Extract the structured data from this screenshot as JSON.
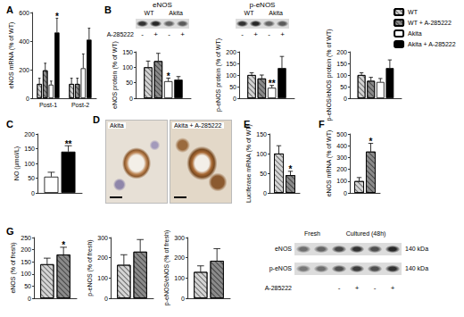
{
  "chart_data": [
    {
      "type": "bar",
      "title": "A",
      "ylabel": "eNOS mRNA (% of WT)",
      "categories": [
        "Post-1",
        "Post-2"
      ],
      "series": [
        {
          "name": "WT",
          "color": "#d4d4d4",
          "values": [
            100,
            100
          ],
          "errors": [
            40,
            40
          ]
        },
        {
          "name": "WT + A-285222",
          "color": "#8a8a8a",
          "values": [
            195,
            100
          ],
          "errors": [
            50,
            40
          ]
        },
        {
          "name": "Akita",
          "color": "#ffffff",
          "values": [
            95,
            210
          ],
          "errors": [
            25,
            100
          ]
        },
        {
          "name": "Akita + A-285222",
          "color": "#000000",
          "values": [
            460,
            410
          ],
          "errors": [
            100,
            80
          ],
          "annotations": [
            "*",
            null
          ]
        }
      ],
      "ylim": [
        0,
        600
      ],
      "yticks": [
        0,
        200,
        400,
        600
      ],
      "grid": false,
      "legend": "upper right"
    },
    {
      "type": "bar",
      "title": "B",
      "ylabel": "eNOS protein (% of WT)",
      "categories": [
        null
      ],
      "series": [
        {
          "name": "WT",
          "color": "#d4d4d4",
          "values": [
            100
          ],
          "errors": [
            20
          ]
        },
        {
          "name": "WT + A-285222",
          "color": "#8a8a8a",
          "values": [
            120
          ],
          "errors": [
            25
          ]
        },
        {
          "name": "Akita",
          "color": "#ffffff",
          "values": [
            55
          ],
          "errors": [
            10
          ],
          "annotations": [
            "*"
          ]
        },
        {
          "name": "Akita + A-285222",
          "color": "#000000",
          "values": [
            60
          ],
          "errors": [
            10
          ]
        }
      ],
      "ylim": [
        0,
        150
      ],
      "yticks": [
        0,
        50,
        100,
        150
      ],
      "grid": false
    },
    {
      "type": "bar",
      "ylabel": "p-eNOS protein (% of WT)",
      "categories": [
        null
      ],
      "series": [
        {
          "name": "WT",
          "color": "#d4d4d4",
          "values": [
            100
          ],
          "errors": [
            10
          ]
        },
        {
          "name": "WT + A-285222",
          "color": "#8a8a8a",
          "values": [
            85
          ],
          "errors": [
            15
          ]
        },
        {
          "name": "Akita",
          "color": "#ffffff",
          "values": [
            45
          ],
          "errors": [
            10
          ],
          "annotations": [
            "**"
          ]
        },
        {
          "name": "Akita + A-285222",
          "color": "#000000",
          "values": [
            130
          ],
          "errors": [
            50
          ]
        }
      ],
      "ylim": [
        0,
        200
      ],
      "yticks": [
        0,
        50,
        100,
        150,
        200
      ],
      "grid": false
    },
    {
      "type": "bar",
      "ylabel": "p-eNOS/eNOS protein (% of WT)",
      "categories": [
        null
      ],
      "series": [
        {
          "name": "WT",
          "color": "#d4d4d4",
          "values": [
            100
          ],
          "errors": [
            10
          ]
        },
        {
          "name": "WT + A-285222",
          "color": "#8a8a8a",
          "values": [
            75
          ],
          "errors": [
            15
          ]
        },
        {
          "name": "Akita",
          "color": "#ffffff",
          "values": [
            70
          ],
          "errors": [
            15
          ]
        },
        {
          "name": "Akita + A-285222",
          "color": "#000000",
          "values": [
            130
          ],
          "errors": [
            35
          ]
        }
      ],
      "ylim": [
        0,
        200
      ],
      "yticks": [
        0,
        50,
        100,
        150,
        200
      ],
      "grid": false
    },
    {
      "type": "bar",
      "title": "C",
      "ylabel": "NO (μmol/L)",
      "categories": [
        null
      ],
      "series": [
        {
          "name": "Akita",
          "color": "#ffffff",
          "values": [
            55
          ],
          "errors": [
            15
          ]
        },
        {
          "name": "Akita + A-285222",
          "color": "#000000",
          "values": [
            140
          ],
          "errors": [
            20
          ],
          "annotations": [
            "**"
          ]
        }
      ],
      "ylim": [
        0,
        200
      ],
      "yticks": [
        0,
        50,
        100,
        150,
        200
      ],
      "grid": false
    },
    {
      "type": "bar",
      "title": "E",
      "ylabel": "Luciferase mRNA (% of WT)",
      "categories": [
        null
      ],
      "series": [
        {
          "color": "#d4d4d4",
          "values": [
            100
          ],
          "errors": [
            20
          ]
        },
        {
          "color": "#8a8a8a",
          "values": [
            45
          ],
          "errors": [
            10
          ],
          "annotations": [
            "*"
          ]
        }
      ],
      "ylim": [
        0,
        150
      ],
      "yticks": [
        0,
        50,
        100,
        150
      ],
      "grid": false
    },
    {
      "type": "bar",
      "title": "F",
      "ylabel": "eNOS mRNA (% of WT)",
      "categories": [
        null
      ],
      "series": [
        {
          "color": "#d4d4d4",
          "values": [
            100
          ],
          "errors": [
            30
          ]
        },
        {
          "color": "#8a8a8a",
          "values": [
            350
          ],
          "errors": [
            70
          ],
          "annotations": [
            "*"
          ]
        }
      ],
      "ylim": [
        0,
        500
      ],
      "yticks": [
        0,
        100,
        200,
        300,
        400,
        500
      ],
      "grid": false
    },
    {
      "type": "bar",
      "title": "G",
      "ylabel": "eNOS (% of fresh)",
      "categories": [
        null
      ],
      "series": [
        {
          "color": "#d4d4d4",
          "values": [
            140
          ],
          "errors": [
            25
          ]
        },
        {
          "color": "#8a8a8a",
          "values": [
            180
          ],
          "errors": [
            30
          ],
          "annotations": [
            "*"
          ]
        }
      ],
      "ylim": [
        0,
        250
      ],
      "yticks": [
        0,
        50,
        100,
        150,
        200,
        250
      ],
      "grid": false
    },
    {
      "type": "bar",
      "ylabel": "p-eNOS (% of fresh)",
      "categories": [
        null
      ],
      "series": [
        {
          "color": "#d4d4d4",
          "values": [
            165
          ],
          "errors": [
            50
          ]
        },
        {
          "color": "#8a8a8a",
          "values": [
            230
          ],
          "errors": [
            60
          ]
        }
      ],
      "ylim": [
        0,
        300
      ],
      "yticks": [
        0,
        100,
        200,
        300
      ],
      "grid": false
    },
    {
      "type": "bar",
      "ylabel": "p-eNOS/eNOS (% of fresh)",
      "categories": [
        null
      ],
      "series": [
        {
          "color": "#d4d4d4",
          "values": [
            130
          ],
          "errors": [
            30
          ]
        },
        {
          "color": "#8a8a8a",
          "values": [
            185
          ],
          "errors": [
            60
          ]
        }
      ],
      "ylim": [
        0,
        300
      ],
      "yticks": [
        0,
        100,
        200,
        300
      ],
      "grid": false
    }
  ],
  "figure": {
    "blot_B": {
      "blots": [
        "eNOS",
        "p-eNOS"
      ],
      "columns": [
        "WT",
        "Akita"
      ],
      "treatment": "A-285222",
      "signs": [
        "-",
        "+",
        "-",
        "+"
      ]
    },
    "panel_D": {
      "letter": "D",
      "images": [
        "Akita",
        "Akita + A-285222"
      ]
    },
    "blot_G": {
      "columns": [
        "Fresh",
        "Cultured (48h)"
      ],
      "rows": [
        "eNOS",
        "p-eNOS"
      ],
      "sizes": [
        "140 kDa",
        "140 kDa"
      ],
      "treatment": "A-285222",
      "signs": [
        null,
        null,
        "-",
        "+",
        "-",
        "+"
      ]
    }
  }
}
